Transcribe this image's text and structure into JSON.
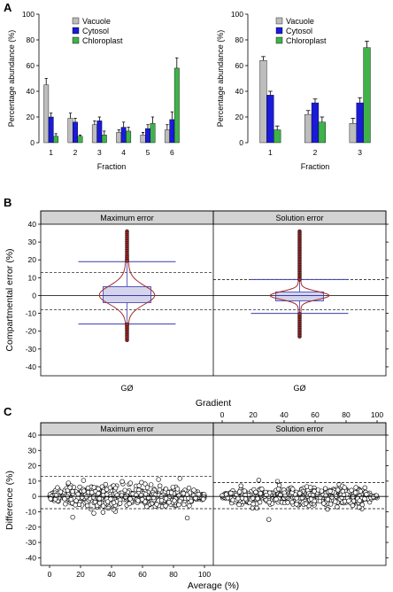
{
  "panel_labels": [
    "A",
    "B",
    "C"
  ],
  "colors": {
    "vacuole": "#bdbdbd",
    "cytosol": "#1a1adb",
    "chloroplast": "#3fb24a",
    "strip_bg": "#d3d3d3",
    "box_fill": "#d4d4ec",
    "box_line": "#3a3ab0",
    "violin": "#a52a2a"
  },
  "chart_data": [
    {
      "id": "A-left",
      "type": "bar",
      "categories": [
        "1",
        "2",
        "3",
        "4",
        "5",
        "6"
      ],
      "series": [
        {
          "name": "Vacuole",
          "values": [
            45,
            19,
            14,
            8,
            6,
            10
          ],
          "errors": [
            5,
            4,
            3,
            2,
            2,
            4
          ]
        },
        {
          "name": "Cytosol",
          "values": [
            20,
            16,
            17,
            12,
            11,
            18
          ],
          "errors": [
            3,
            3,
            3,
            4,
            3,
            6
          ]
        },
        {
          "name": "Chloroplast",
          "values": [
            5,
            5,
            6,
            9,
            15,
            58
          ],
          "errors": [
            2,
            1,
            3,
            3,
            5,
            8
          ]
        }
      ],
      "xlabel": "Fraction",
      "ylabel": "Percentage abundance (%)",
      "ylim": [
        0,
        100
      ],
      "yticks": [
        0,
        20,
        40,
        60,
        80,
        100
      ],
      "legend": "top-left"
    },
    {
      "id": "A-right",
      "type": "bar",
      "categories": [
        "1",
        "2",
        "3"
      ],
      "series": [
        {
          "name": "Vacuole",
          "values": [
            64,
            22,
            15
          ],
          "errors": [
            3,
            3,
            4
          ]
        },
        {
          "name": "Cytosol",
          "values": [
            37,
            31,
            31
          ],
          "errors": [
            3,
            3,
            4
          ]
        },
        {
          "name": "Chloroplast",
          "values": [
            10,
            16,
            74
          ],
          "errors": [
            3,
            4,
            5
          ]
        }
      ],
      "xlabel": "Fraction",
      "ylabel": "Percentage abundance (%)",
      "ylim": [
        0,
        100
      ],
      "yticks": [
        0,
        20,
        40,
        60,
        80,
        100
      ],
      "legend": "top-left"
    },
    {
      "id": "B",
      "type": "box",
      "panels": [
        {
          "strip": "Maximum error",
          "category": "GØ",
          "median": 0,
          "q1": -4,
          "q3": 5,
          "whisker_low": -16,
          "whisker_high": 19,
          "dashed_lines": [
            13,
            -8
          ],
          "outlier_range": [
            -25,
            36
          ]
        },
        {
          "strip": "Solution error",
          "category": "GØ",
          "median": 0,
          "q1": -3,
          "q3": 2,
          "whisker_low": -10,
          "whisker_high": 9,
          "dashed_lines": [
            9,
            -8
          ],
          "outlier_range": [
            -23,
            36
          ]
        }
      ],
      "xlabel": "Gradient",
      "ylabel": "Compartmental error (%)",
      "ylim": [
        -45,
        40
      ],
      "yticks": [
        -40,
        -30,
        -20,
        -10,
        0,
        10,
        20,
        30,
        40
      ]
    },
    {
      "id": "C",
      "type": "scatter",
      "panels": [
        {
          "strip": "Maximum error",
          "dashed_lines": [
            13,
            -8
          ]
        },
        {
          "strip": "Solution error",
          "dashed_lines": [
            9,
            -8
          ]
        }
      ],
      "xlabel": "Average (%)",
      "ylabel": "Difference (%)",
      "xlim": [
        0,
        100
      ],
      "xticks": [
        0,
        20,
        40,
        60,
        80,
        100
      ],
      "ylim": [
        -45,
        40
      ],
      "yticks": [
        -40,
        -30,
        -20,
        -10,
        0,
        10,
        20,
        30,
        40
      ]
    }
  ]
}
